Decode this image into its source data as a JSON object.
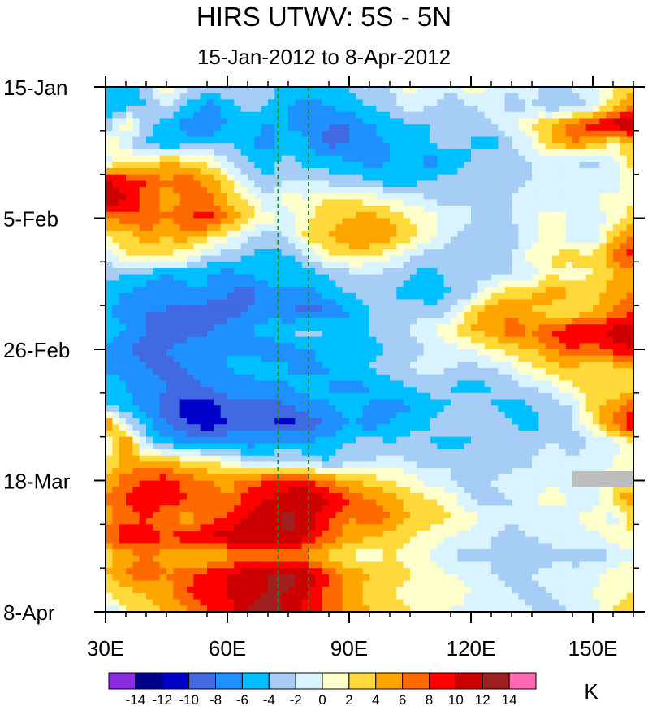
{
  "chart_data": {
    "type": "heatmap",
    "title": "HIRS UTWV: 5S - 5N",
    "subtitle": "15-Jan-2012 to 8-Apr-2012",
    "x_axis": {
      "label": "Longitude",
      "range": [
        30,
        160
      ],
      "ticks": [
        30,
        60,
        90,
        120,
        150
      ],
      "tick_labels": [
        "30E",
        "60E",
        "90E",
        "120E",
        "150E"
      ]
    },
    "y_axis": {
      "label": "Date",
      "range_days": [
        0,
        84
      ],
      "ticks_days": [
        0,
        21,
        42,
        63,
        84
      ],
      "tick_labels": [
        "15-Jan",
        "5-Feb",
        "26-Feb",
        "18-Mar",
        "8-Apr"
      ]
    },
    "reference_lines": [
      {
        "lon": 72.5,
        "style": "dashed",
        "color": "#1f8a1f"
      },
      {
        "lon": 80,
        "style": "dashed",
        "color": "#1f8a1f"
      }
    ],
    "colorbar": {
      "unit": "K",
      "levels": [
        -14,
        -12,
        -10,
        -8,
        -6,
        -4,
        -2,
        0,
        2,
        4,
        6,
        8,
        10,
        12,
        14
      ],
      "labels": [
        "-14",
        "-12",
        "-10",
        "-8",
        "-6",
        "-4",
        "-2",
        "0",
        "2",
        "4",
        "6",
        "8",
        "10",
        "12",
        "14"
      ],
      "colors": [
        "#8a2be2",
        "#00008b",
        "#0000cd",
        "#4169e1",
        "#1e90ff",
        "#00bfff",
        "#a6cdf5",
        "#d9f3ff",
        "#ffffcc",
        "#ffd93a",
        "#ffa500",
        "#ff6a00",
        "#ff0000",
        "#cc0000",
        "#a02020",
        "#ff69b4"
      ]
    },
    "lon": [
      30,
      35,
      40,
      45,
      50,
      55,
      60,
      65,
      70,
      75,
      80,
      85,
      90,
      95,
      100,
      105,
      110,
      115,
      120,
      125,
      130,
      135,
      140,
      145,
      150,
      155,
      160
    ],
    "dates_days_since_15jan": [
      0,
      3,
      6,
      9,
      12,
      15,
      18,
      21,
      24,
      27,
      30,
      33,
      36,
      39,
      42,
      45,
      48,
      51,
      54,
      57,
      60,
      63,
      66,
      69,
      72,
      75,
      78,
      81,
      84
    ],
    "values": [
      [
        -4,
        -5,
        -3,
        2,
        -2,
        -3,
        -2,
        -4,
        -3,
        -5,
        -5,
        -4,
        -4,
        -3,
        -2,
        1,
        -1,
        -2,
        2,
        -1,
        -2,
        -1,
        -3,
        -2,
        -1,
        2,
        4
      ],
      [
        -6,
        -5,
        -4,
        -2,
        -4,
        -7,
        -5,
        -3,
        -4,
        -6,
        -7,
        -6,
        -5,
        -4,
        -3,
        -1,
        -2,
        -3,
        -2,
        -1,
        -3,
        -2,
        -4,
        -3,
        -2,
        3,
        6
      ],
      [
        -4,
        2,
        -3,
        -5,
        -7,
        -8,
        -6,
        -5,
        -6,
        -6,
        -7,
        -8,
        -8,
        -6,
        -5,
        -4,
        -4,
        -3,
        -4,
        -2,
        -1,
        2,
        4,
        7,
        9,
        11,
        13
      ],
      [
        3,
        -2,
        -4,
        -6,
        -5,
        -5,
        -4,
        -6,
        -7,
        -5,
        -6,
        -9,
        -8,
        -7,
        -6,
        -5,
        -4,
        -3,
        -4,
        -5,
        -2,
        0,
        4,
        6,
        5,
        2,
        4
      ],
      [
        -2,
        3,
        2,
        4,
        3,
        2,
        -2,
        -4,
        -5,
        -3,
        -5,
        -5,
        -6,
        -7,
        -6,
        -5,
        -7,
        -6,
        -4,
        -3,
        -4,
        -2,
        -1,
        -2,
        -3,
        -1,
        3
      ],
      [
        10,
        9,
        8,
        6,
        7,
        5,
        3,
        -2,
        -4,
        -2,
        -2,
        -3,
        -3,
        -4,
        -5,
        -5,
        -4,
        -3,
        -2,
        -4,
        -3,
        -2,
        -1,
        0,
        -1,
        -2,
        2
      ],
      [
        12,
        10,
        7,
        5,
        6,
        7,
        4,
        2,
        -2,
        1,
        0,
        3,
        2,
        1,
        0,
        -1,
        -2,
        -3,
        -2,
        -3,
        -2,
        -1,
        -2,
        -1,
        0,
        1,
        2
      ],
      [
        6,
        7,
        8,
        6,
        8,
        9,
        6,
        3,
        1,
        -1,
        2,
        3,
        4,
        5,
        4,
        2,
        1,
        -1,
        -2,
        -3,
        -2,
        -1,
        2,
        -1,
        -2,
        1,
        3
      ],
      [
        2,
        3,
        5,
        4,
        5,
        3,
        1,
        -2,
        -3,
        -2,
        3,
        4,
        5,
        6,
        5,
        3,
        1,
        -2,
        -3,
        -2,
        -3,
        -1,
        1,
        -1,
        -2,
        4,
        6
      ],
      [
        -2,
        2,
        3,
        2,
        1,
        -2,
        -3,
        -4,
        -5,
        -4,
        -2,
        2,
        3,
        2,
        1,
        -2,
        -3,
        -4,
        -2,
        -3,
        -2,
        1,
        2,
        3,
        2,
        6,
        9
      ],
      [
        -3,
        -4,
        -5,
        -6,
        -5,
        -6,
        -7,
        -6,
        -5,
        -6,
        -5,
        -4,
        -3,
        -2,
        -3,
        -4,
        -5,
        -3,
        -2,
        -3,
        -2,
        -1,
        2,
        1,
        2,
        4,
        5
      ],
      [
        -5,
        -6,
        -7,
        -8,
        -7,
        -6,
        -8,
        -9,
        -7,
        -6,
        -7,
        -5,
        -4,
        -3,
        -4,
        -5,
        -6,
        -4,
        -3,
        2,
        3,
        4,
        5,
        4,
        3,
        5,
        6
      ],
      [
        -6,
        -7,
        -8,
        -8,
        -9,
        -10,
        -9,
        -8,
        -7,
        -8,
        -9,
        -8,
        -6,
        -4,
        -3,
        -2,
        -3,
        -2,
        3,
        5,
        6,
        4,
        3,
        2,
        4,
        6,
        8
      ],
      [
        -4,
        -6,
        -8,
        -10,
        -9,
        -8,
        -7,
        -6,
        -5,
        -4,
        -3,
        -4,
        -5,
        -4,
        -3,
        -2,
        -1,
        2,
        4,
        5,
        7,
        6,
        8,
        10,
        9,
        11,
        12
      ],
      [
        -7,
        -8,
        -9,
        -8,
        -7,
        -8,
        -6,
        -7,
        -8,
        -7,
        -6,
        -5,
        -6,
        -5,
        -4,
        -3,
        -2,
        -1,
        0,
        2,
        3,
        4,
        6,
        8,
        7,
        9,
        10
      ],
      [
        -6,
        -7,
        -8,
        -9,
        -8,
        -7,
        -6,
        -5,
        -4,
        -6,
        -7,
        -6,
        -5,
        -4,
        -3,
        -2,
        -1,
        -2,
        -3,
        -2,
        -1,
        2,
        3,
        4,
        2,
        3,
        4
      ],
      [
        -5,
        -6,
        -7,
        -8,
        -9,
        -8,
        -7,
        -8,
        -7,
        -6,
        -5,
        -6,
        -7,
        -6,
        -5,
        -4,
        -3,
        -4,
        -5,
        -4,
        -3,
        -2,
        -1,
        2,
        3,
        2,
        3
      ],
      [
        -4,
        -5,
        -7,
        -9,
        -11,
        -12,
        -9,
        -8,
        -9,
        -8,
        -7,
        -6,
        -5,
        -6,
        -7,
        -6,
        -5,
        -4,
        -3,
        -4,
        -5,
        -4,
        -3,
        -2,
        3,
        5,
        7
      ],
      [
        8,
        -2,
        -5,
        -8,
        -10,
        -11,
        -10,
        -9,
        -10,
        -11,
        -9,
        -8,
        -6,
        -7,
        -6,
        -5,
        -4,
        -3,
        -4,
        -3,
        -4,
        -5,
        -3,
        -2,
        2,
        6,
        10
      ],
      [
        -2,
        7,
        -3,
        -5,
        -6,
        -7,
        -6,
        -7,
        -6,
        -5,
        -6,
        -5,
        -4,
        -3,
        -4,
        -3,
        -4,
        -5,
        -4,
        -3,
        -2,
        -3,
        -2,
        -3,
        -2,
        -1,
        2
      ],
      [
        3,
        4,
        5,
        4,
        3,
        2,
        1,
        -2,
        -3,
        -2,
        -3,
        -4,
        -3,
        -2,
        -1,
        -2,
        -3,
        -2,
        -3,
        -4,
        -3,
        -2,
        -1,
        -2,
        -1,
        0,
        1
      ],
      [
        4,
        7,
        8,
        9,
        7,
        6,
        5,
        7,
        8,
        9,
        8,
        6,
        4,
        3,
        2,
        1,
        -1,
        -2,
        -3,
        -2,
        -1,
        -2,
        -1,
        -2,
        -1,
        1,
        2
      ],
      [
        6,
        8,
        10,
        9,
        8,
        7,
        6,
        9,
        10,
        11,
        12,
        10,
        8,
        6,
        5,
        3,
        2,
        1,
        -2,
        -3,
        -2,
        -1,
        2,
        -1,
        -2,
        3,
        6
      ],
      [
        5,
        7,
        8,
        6,
        5,
        7,
        8,
        10,
        11,
        13,
        11,
        8,
        6,
        7,
        6,
        4,
        3,
        2,
        1,
        -1,
        -2,
        -1,
        -2,
        -1,
        2,
        -1,
        3
      ],
      [
        6,
        10,
        9,
        8,
        9,
        10,
        11,
        12,
        11,
        12,
        10,
        7,
        5,
        4,
        3,
        2,
        1,
        0,
        -1,
        -2,
        -3,
        -2,
        -1,
        -2,
        -1,
        1,
        2
      ],
      [
        3,
        5,
        6,
        5,
        4,
        3,
        5,
        6,
        7,
        6,
        5,
        3,
        2,
        1,
        2,
        1,
        0,
        -2,
        -3,
        -2,
        -3,
        -4,
        -3,
        -2,
        -3,
        -2,
        -1
      ],
      [
        4,
        6,
        7,
        6,
        7,
        9,
        10,
        11,
        12,
        13,
        11,
        8,
        5,
        4,
        3,
        2,
        1,
        0,
        -1,
        -2,
        -3,
        -2,
        -1,
        -2,
        -1,
        1,
        2
      ],
      [
        2,
        3,
        4,
        5,
        8,
        9,
        10,
        11,
        12,
        12,
        10,
        7,
        5,
        3,
        2,
        1,
        2,
        1,
        0,
        -1,
        -2,
        -3,
        -2,
        -1,
        0,
        1,
        2
      ],
      [
        -3,
        2,
        3,
        4,
        6,
        8,
        9,
        12,
        14,
        11,
        9,
        7,
        5,
        4,
        3,
        2,
        1,
        0,
        -1,
        -2,
        -1,
        -2,
        -3,
        -2,
        -1,
        2,
        3
      ]
    ],
    "missing_data_patch": {
      "lon_range": [
        145,
        160
      ],
      "days_range": [
        61.5,
        64
      ]
    }
  }
}
